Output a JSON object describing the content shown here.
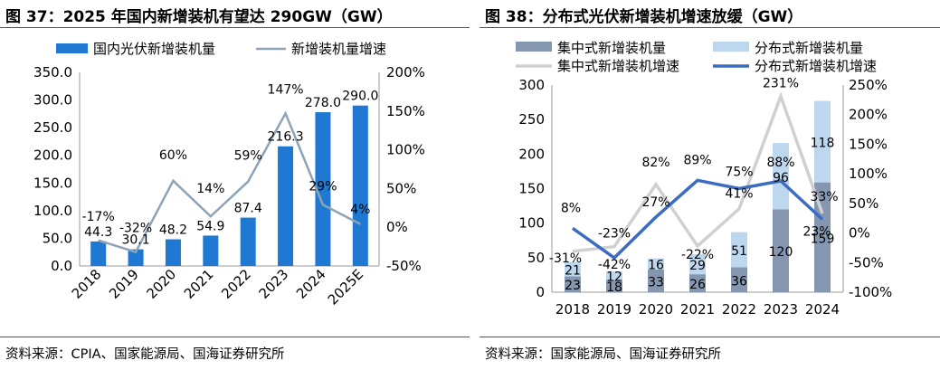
{
  "chart_data": [
    {
      "type": "bar",
      "title": "图 37：2025 年国内新增装机有望达 290GW（GW）",
      "source": "资料来源：CPIA、国家能源局、国海证券研究所",
      "categories": [
        "2018",
        "2019",
        "2020",
        "2021",
        "2022",
        "2023",
        "2024",
        "2025E"
      ],
      "series": [
        {
          "name": "国内光伏新增装机量",
          "kind": "bar",
          "axis": "left",
          "color": "#1f78d1",
          "values": [
            44.3,
            30.1,
            48.2,
            54.9,
            87.4,
            216.3,
            278.0,
            290.0
          ],
          "labels": [
            "44.3",
            "30.1",
            "48.2",
            "54.9",
            "87.4",
            "216.3",
            "278.0",
            "290.0"
          ]
        },
        {
          "name": "新增装机量增速",
          "kind": "line",
          "axis": "right",
          "color": "#8da3b8",
          "values": [
            -17,
            -32,
            60,
            14,
            59,
            147,
            29,
            4
          ],
          "labels": [
            "-17%",
            "-32%",
            "60%",
            "14%",
            "59%",
            "147%",
            "29%",
            "4%"
          ]
        }
      ],
      "y_left": {
        "min": 0,
        "max": 350,
        "step": 50,
        "ticks": [
          "0.0",
          "50.0",
          "100.0",
          "150.0",
          "200.0",
          "250.0",
          "300.0",
          "350.0"
        ]
      },
      "y_right": {
        "min": -50,
        "max": 200,
        "step": 50,
        "ticks": [
          "-50%",
          "0%",
          "50%",
          "100%",
          "150%",
          "200%"
        ]
      },
      "legend": "top",
      "grid": false
    },
    {
      "type": "bar",
      "stacked": true,
      "title": "图 38：分布式光伏新增装机增速放缓（GW）",
      "source": "资料来源：国家能源局、国海证券研究所",
      "categories": [
        "2018",
        "2019",
        "2020",
        "2021",
        "2022",
        "2023",
        "2024"
      ],
      "series": [
        {
          "name": "集中式新增装机量",
          "kind": "bar",
          "axis": "left",
          "color": "#8496b0",
          "values": [
            23,
            18,
            33,
            26,
            36,
            120,
            159
          ],
          "labels": [
            "23",
            "18",
            "33",
            "26",
            "36",
            "120",
            "159"
          ]
        },
        {
          "name": "分布式新增装机量",
          "kind": "bar",
          "axis": "left",
          "color": "#bdd7ee",
          "values": [
            21,
            12,
            16,
            29,
            51,
            96,
            118
          ],
          "labels": [
            "21",
            "12",
            "16",
            "29",
            "51",
            "96",
            "118"
          ]
        },
        {
          "name": "集中式新增装机增速",
          "kind": "line",
          "axis": "right",
          "color": "#d0d0d0",
          "values": [
            -31,
            -23,
            82,
            -22,
            41,
            231,
            33
          ],
          "labels": [
            "-31%",
            "-23%",
            "82%",
            "-22%",
            "41%",
            "231%",
            "33%"
          ]
        },
        {
          "name": "分布式新增装机增速",
          "kind": "line",
          "axis": "right",
          "color": "#3b6cc2",
          "values": [
            8,
            -42,
            27,
            89,
            75,
            88,
            23
          ],
          "labels": [
            "8%",
            "-42%",
            "27%",
            "89%",
            "75%",
            "88%",
            "23%"
          ]
        }
      ],
      "y_left": {
        "min": 0,
        "max": 300,
        "step": 50,
        "ticks": [
          "0",
          "50",
          "100",
          "150",
          "200",
          "250",
          "300"
        ]
      },
      "y_right": {
        "min": -100,
        "max": 250,
        "step": 50,
        "ticks": [
          "-100%",
          "-50%",
          "0%",
          "50%",
          "100%",
          "150%",
          "200%",
          "250%"
        ]
      },
      "legend": "top",
      "grid": false
    }
  ]
}
